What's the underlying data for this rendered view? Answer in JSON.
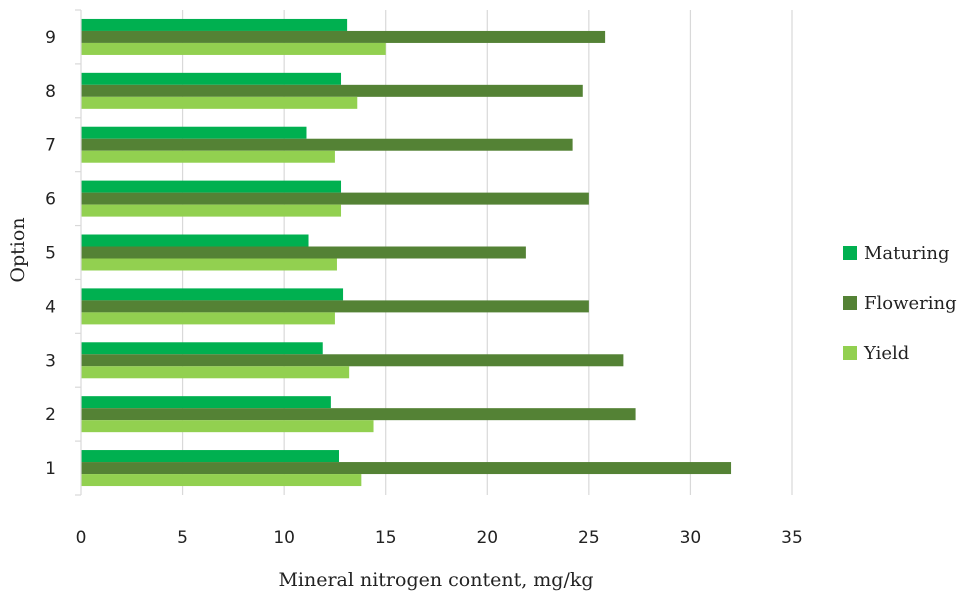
{
  "chart_data": {
    "type": "bar",
    "orientation": "horizontal",
    "categories": [
      "1",
      "2",
      "3",
      "4",
      "5",
      "6",
      "7",
      "8",
      "9"
    ],
    "series": [
      {
        "name": "Maturing",
        "color": "#00b050",
        "values": [
          12.7,
          12.3,
          11.9,
          12.9,
          11.2,
          12.8,
          11.1,
          12.8,
          13.1
        ]
      },
      {
        "name": "Flowering",
        "color": "#548235",
        "values": [
          32.0,
          27.3,
          26.7,
          25.0,
          21.9,
          25.0,
          24.2,
          24.7,
          25.8
        ]
      },
      {
        "name": "Yield",
        "color": "#92d050",
        "values": [
          13.8,
          14.4,
          13.2,
          12.5,
          12.6,
          12.8,
          12.5,
          13.6,
          15.0
        ]
      }
    ],
    "xlabel": "Mineral nitrogen content, mg/kg",
    "ylabel": "Option",
    "xlim": [
      0,
      35
    ],
    "xticks": [
      "0",
      "5",
      "10",
      "15",
      "20",
      "25",
      "30",
      "35"
    ],
    "grid": "vertical",
    "legend_position": "right"
  }
}
